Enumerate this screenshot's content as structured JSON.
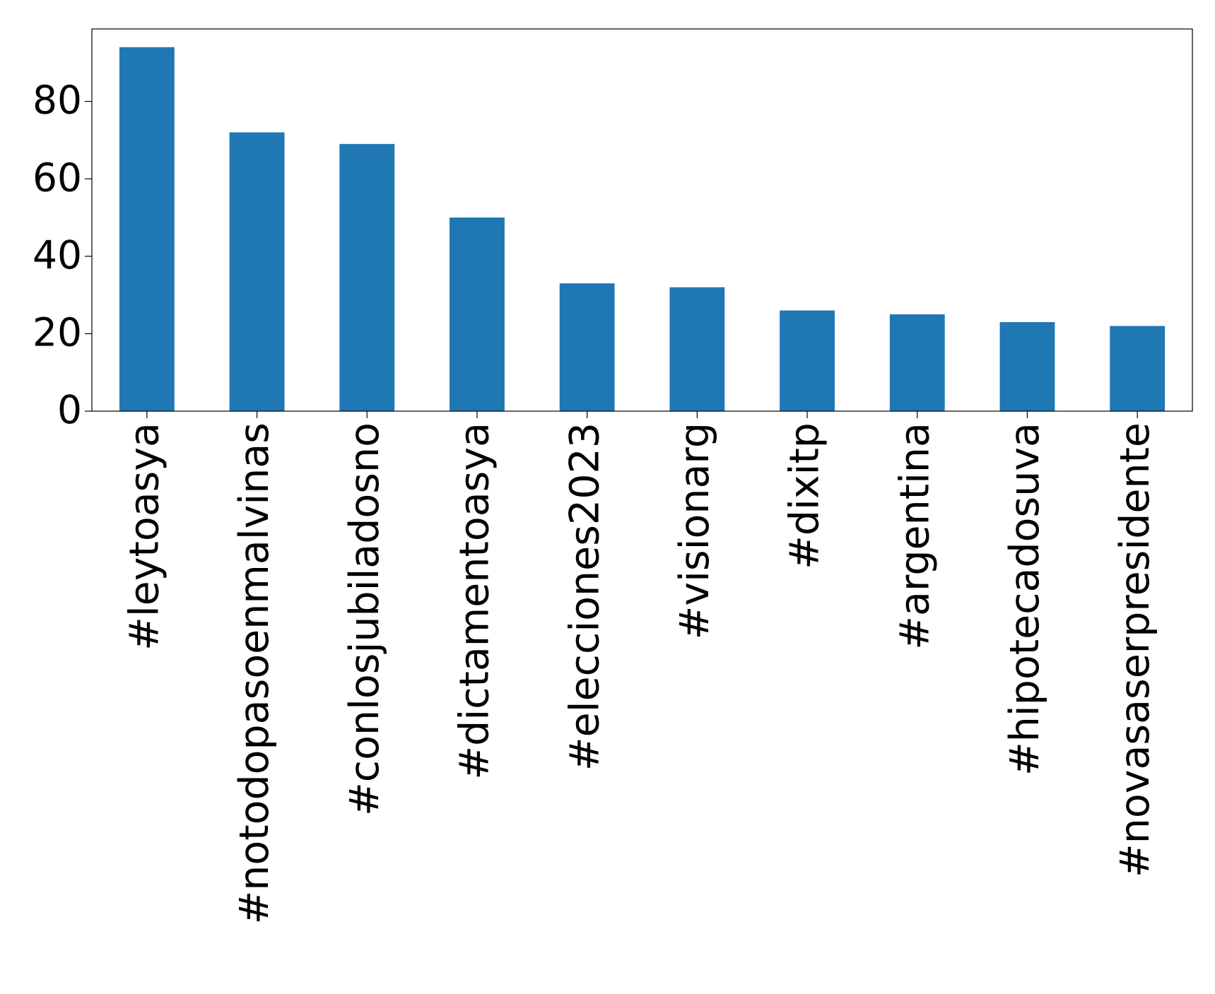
{
  "chart_data": {
    "type": "bar",
    "categories": [
      "#leytoasya",
      "#notodopasoenmalvinas",
      "#conlosjubiladosno",
      "#dictamentoasya",
      "#elecciones2023",
      "#visionarg",
      "#dixitp",
      "#argentina",
      "#hipotecadosuva",
      "#novasaserpresidente"
    ],
    "values": [
      94,
      72,
      69,
      50,
      33,
      32,
      26,
      25,
      23,
      22
    ],
    "color": "#1f77b4",
    "ylim": [
      0,
      98.7
    ],
    "yticks": [
      0,
      20,
      40,
      60,
      80
    ],
    "grid": false
  }
}
